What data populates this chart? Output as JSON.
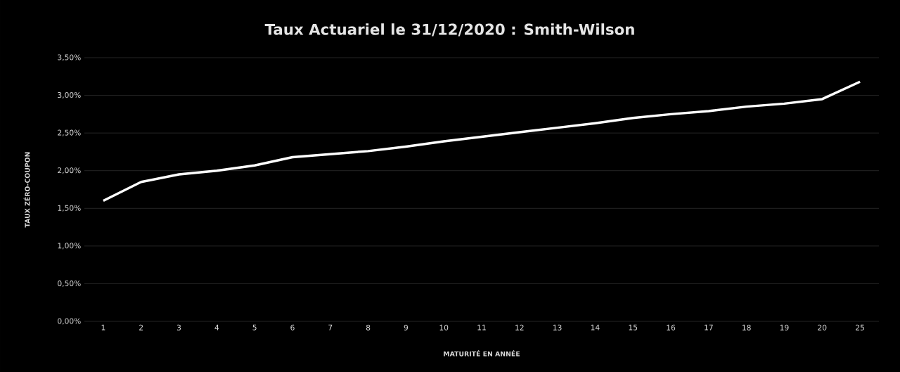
{
  "chart_data": {
    "type": "line",
    "title": "Taux Actuariel le 31/12/2020 : Smith-Wilson",
    "xlabel": "MATURITÉ EN ANNÉE",
    "ylabel": "TAUX ZÉRO-COUPON",
    "categories": [
      "1",
      "2",
      "3",
      "4",
      "5",
      "6",
      "7",
      "8",
      "9",
      "10",
      "11",
      "12",
      "13",
      "14",
      "15",
      "16",
      "17",
      "18",
      "19",
      "20",
      "25"
    ],
    "series": [
      {
        "color": "#ffffff",
        "values": [
          1.6,
          1.85,
          1.95,
          2.0,
          2.07,
          2.18,
          2.22,
          2.26,
          2.32,
          2.39,
          2.45,
          2.51,
          2.57,
          2.63,
          2.7,
          2.75,
          2.79,
          2.85,
          2.89,
          2.95,
          3.18
        ]
      }
    ],
    "ylim": [
      0,
      3.5
    ],
    "yticks": [
      {
        "value": 0,
        "label": "0,00%"
      },
      {
        "value": 0.5,
        "label": "0,50%"
      },
      {
        "value": 1,
        "label": "1,00%"
      },
      {
        "value": 1.5,
        "label": "1,50%"
      },
      {
        "value": 2,
        "label": "2,00%"
      },
      {
        "value": 2.5,
        "label": "2,50%"
      },
      {
        "value": 3,
        "label": "3,00%"
      },
      {
        "value": 3.5,
        "label": "3,50%"
      }
    ],
    "grid": "y"
  }
}
